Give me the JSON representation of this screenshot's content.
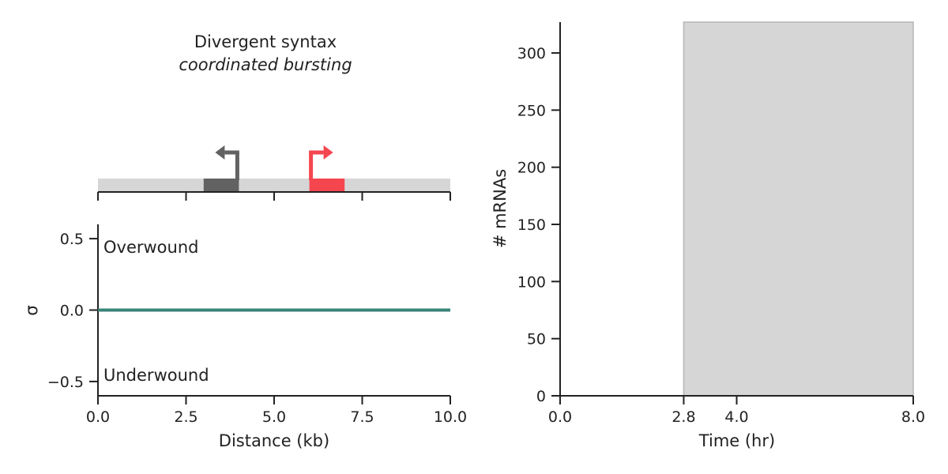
{
  "colors": {
    "axis": "#222222",
    "gene_gray": "#626262",
    "gene_red": "#f5464f",
    "track": "#d6d6d6",
    "supercoiling_line": "#3a8478",
    "shade": "#d6d6d6",
    "shade_edge": "#b5b5b5"
  },
  "chart_data": [
    {
      "type": "diagram",
      "name": "gene-track",
      "title": "Divergent syntax",
      "subtitle": "coordinated bursting",
      "xlim": [
        0,
        10
      ],
      "xticks": [
        0,
        2.5,
        5.0,
        7.5,
        10.0
      ],
      "genes": [
        {
          "start": 3.0,
          "end": 4.0,
          "direction": "left",
          "color": "#626262"
        },
        {
          "start": 6.0,
          "end": 7.0,
          "direction": "right",
          "color": "#f5464f"
        }
      ]
    },
    {
      "type": "line",
      "name": "supercoiling-plot",
      "xlabel": "Distance (kb)",
      "ylabel": "σ",
      "xlim": [
        0,
        10
      ],
      "ylim": [
        -0.6,
        0.6
      ],
      "xticks": [
        0,
        2.5,
        5.0,
        7.5,
        10.0
      ],
      "xtick_labels": [
        "0.0",
        "2.5",
        "5.0",
        "7.5",
        "10.0"
      ],
      "yticks": [
        0.5,
        0.0,
        -0.5
      ],
      "ytick_labels": [
        "0.5",
        "0.0",
        "−0.5"
      ],
      "annotations": {
        "top": "Overwound",
        "bottom": "Underwound"
      },
      "series": [
        {
          "x": [
            0,
            10
          ],
          "y": [
            0,
            0
          ],
          "color": "#3a8478"
        }
      ]
    },
    {
      "type": "area",
      "name": "mrna-plot",
      "xlabel": "Time (hr)",
      "ylabel": "# mRNAs",
      "xlim": [
        0,
        8
      ],
      "ylim": [
        0,
        327
      ],
      "xticks": [
        0,
        2.8,
        4.0,
        8.0
      ],
      "xtick_labels": [
        "0.0",
        "2.8",
        "4.0",
        "8.0"
      ],
      "yticks": [
        0,
        50,
        100,
        150,
        200,
        250,
        300
      ],
      "yticks_labels": [
        "0",
        "50",
        "100",
        "150",
        "200",
        "250",
        "300"
      ],
      "shaded_region": {
        "x_start": 2.8,
        "x_end": 8.0,
        "color": "#d6d6d6"
      }
    }
  ]
}
